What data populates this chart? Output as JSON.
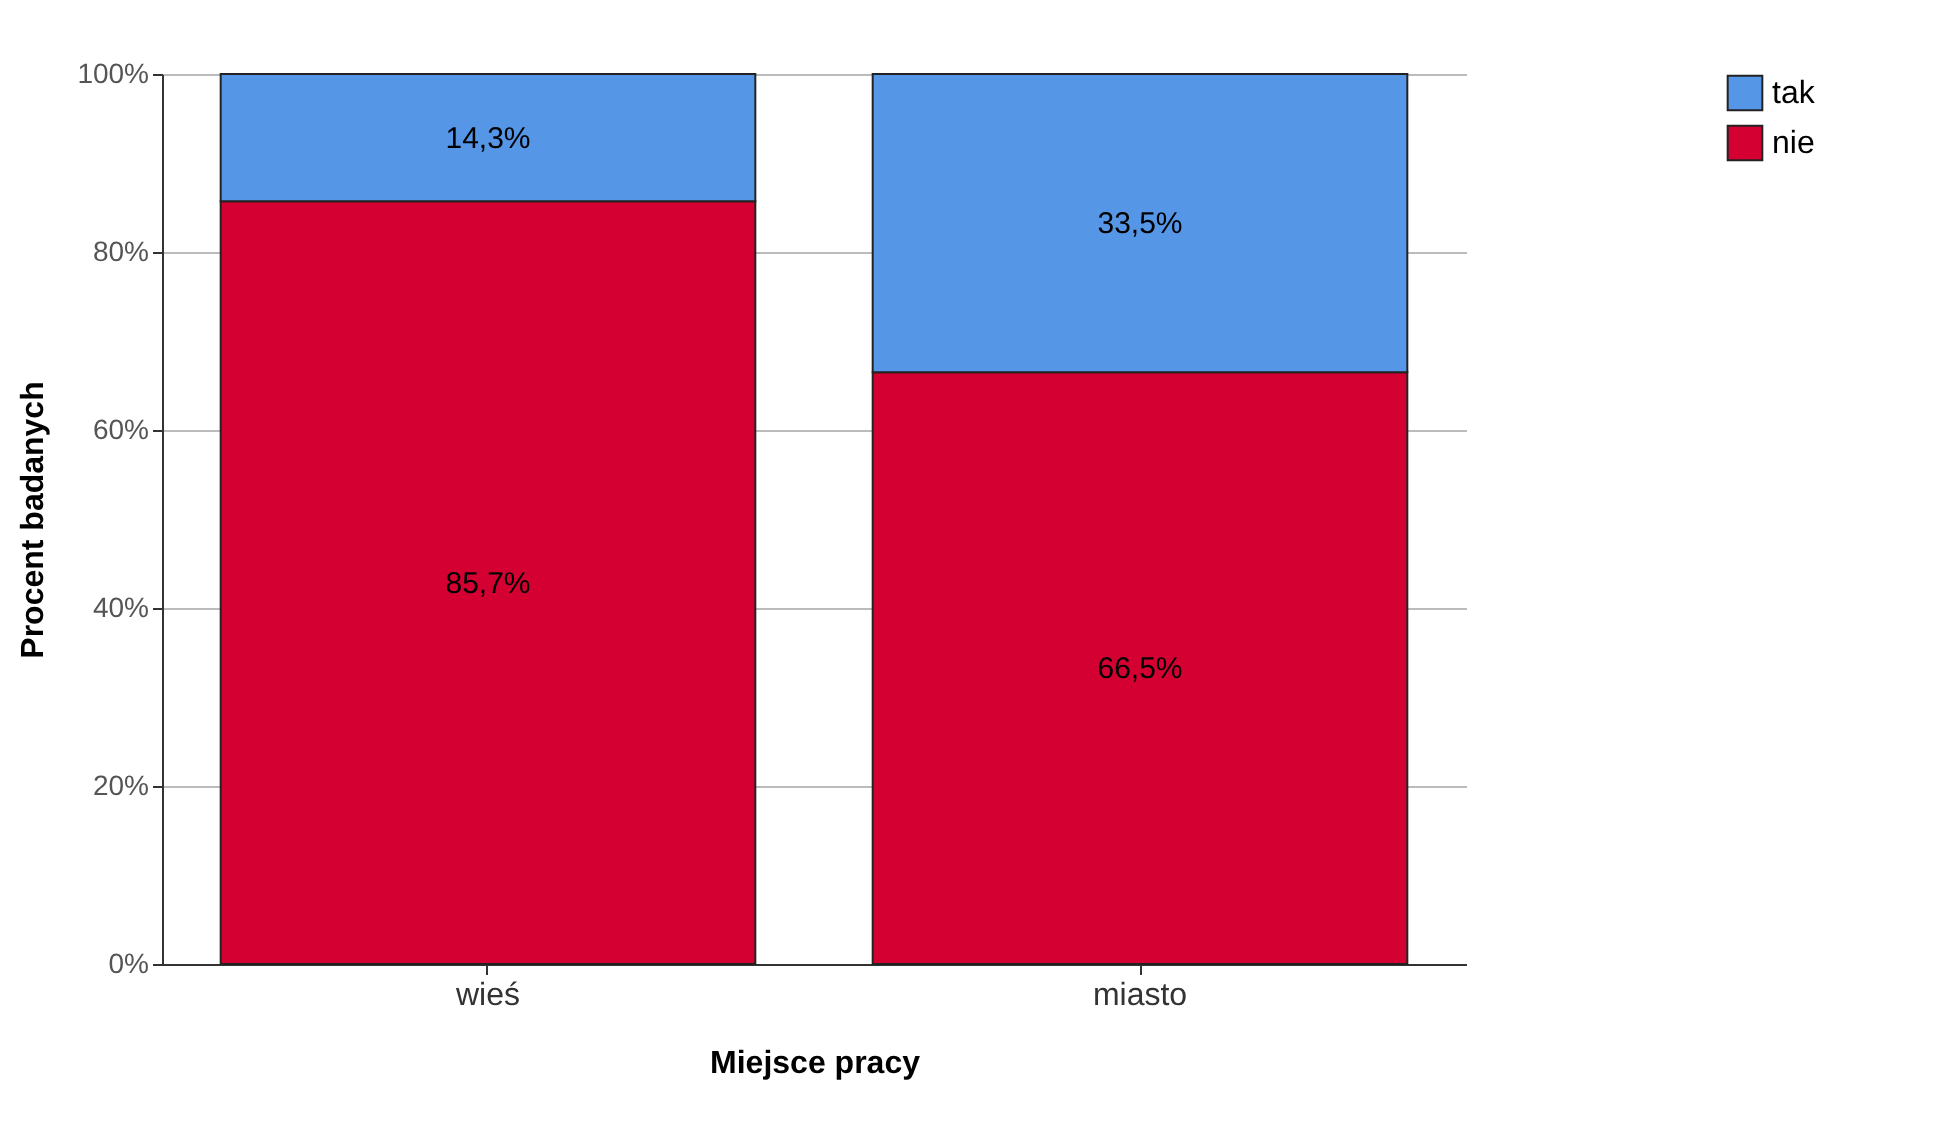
{
  "chart_data": {
    "type": "bar",
    "stacked": true,
    "xlabel": "Miejsce pracy",
    "ylabel": "Procent badanych",
    "categories": [
      "wieś",
      "miasto"
    ],
    "series": [
      {
        "name": "nie",
        "color": "#d50032",
        "values": [
          85.7,
          66.5
        ],
        "value_labels": [
          "85,7%",
          "66,5%"
        ]
      },
      {
        "name": "tak",
        "color": "#5596e6",
        "values": [
          14.3,
          33.5
        ],
        "value_labels": [
          "14,3%",
          "33,5%"
        ]
      }
    ],
    "ylim": [
      0,
      100
    ],
    "yticks": [
      {
        "value": 0,
        "label": "0%"
      },
      {
        "value": 20,
        "label": "20%"
      },
      {
        "value": 40,
        "label": "40%"
      },
      {
        "value": 60,
        "label": "60%"
      },
      {
        "value": 80,
        "label": "80%"
      },
      {
        "value": 100,
        "label": "100%"
      }
    ],
    "grid": "y",
    "legend": "right"
  }
}
